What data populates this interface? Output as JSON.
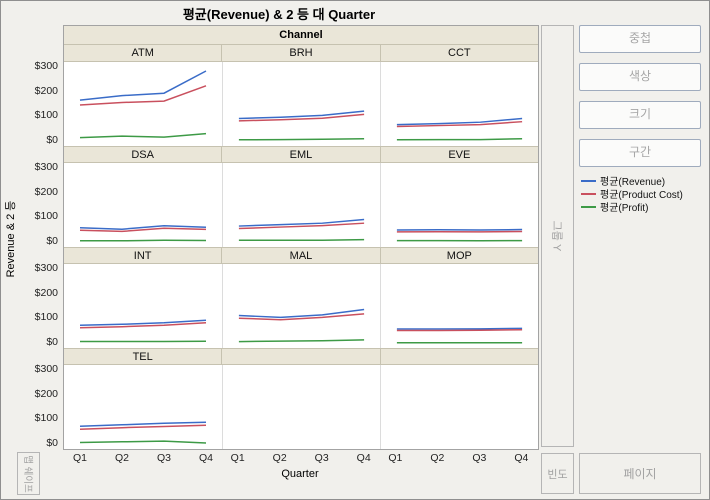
{
  "title": "평균(Revenue) & 2 등 대 Quarter",
  "panel": {
    "channel_header": "Channel",
    "group_y_dropzone": "그룹 Y",
    "map_shape_dropzone": "맵 쉐이프",
    "freq_dropzone": "빈도",
    "page_dropzone": "페이지"
  },
  "controls": {
    "buttons": [
      "중첩",
      "색상",
      "크기",
      "구간"
    ]
  },
  "chart_data": {
    "type": "line",
    "title": "평균(Revenue) & 2 등 대 Quarter",
    "facet_variable": "Channel",
    "xlabel": "Quarter",
    "ylabel": "Revenue & 2 등",
    "x": [
      "Q1",
      "Q2",
      "Q3",
      "Q4"
    ],
    "ylim": [
      0,
      300
    ],
    "yticks": [
      {
        "label": "$300",
        "value": 300
      },
      {
        "label": "$200",
        "value": 200
      },
      {
        "label": "$100",
        "value": 100
      },
      {
        "label": "$0",
        "value": 0
      }
    ],
    "series_names": [
      "평균(Revenue)",
      "평균(Product Cost)",
      "평균(Profit)"
    ],
    "series_colors": [
      "#3a6cc8",
      "#c9505e",
      "#3d9a46"
    ],
    "legend_position": "right",
    "grid": "off",
    "layout": [
      [
        "ATM",
        "BRH",
        "CCT"
      ],
      [
        "DSA",
        "EML",
        "EVE"
      ],
      [
        "INT",
        "MAL",
        "MOP"
      ],
      [
        "TEL",
        null,
        null
      ]
    ],
    "facets": [
      {
        "name": "ATM",
        "series": [
          [
            170,
            188,
            198,
            288
          ],
          [
            150,
            160,
            166,
            228
          ],
          [
            18,
            24,
            20,
            34
          ]
        ]
      },
      {
        "name": "BRH",
        "series": [
          [
            95,
            100,
            108,
            125
          ],
          [
            85,
            90,
            96,
            112
          ],
          [
            8,
            9,
            10,
            12
          ]
        ]
      },
      {
        "name": "CCT",
        "series": [
          [
            70,
            74,
            80,
            95
          ],
          [
            62,
            66,
            70,
            82
          ],
          [
            8,
            9,
            9,
            12
          ]
        ]
      },
      {
        "name": "DSA",
        "series": [
          [
            62,
            56,
            70,
            64
          ],
          [
            52,
            47,
            60,
            55
          ],
          [
            9,
            9,
            11,
            10
          ]
        ]
      },
      {
        "name": "EML",
        "series": [
          [
            68,
            74,
            80,
            95
          ],
          [
            58,
            64,
            70,
            80
          ],
          [
            10,
            10,
            10,
            13
          ]
        ]
      },
      {
        "name": "EVE",
        "series": [
          [
            52,
            53,
            52,
            54
          ],
          [
            44,
            45,
            44,
            46
          ],
          [
            9,
            9,
            8,
            9
          ]
        ]
      },
      {
        "name": "INT",
        "series": [
          [
            76,
            80,
            86,
            96
          ],
          [
            66,
            70,
            76,
            86
          ],
          [
            10,
            10,
            10,
            11
          ]
        ]
      },
      {
        "name": "MAL",
        "series": [
          [
            115,
            108,
            118,
            140
          ],
          [
            104,
            98,
            108,
            122
          ],
          [
            9,
            11,
            12,
            16
          ]
        ]
      },
      {
        "name": "MOP",
        "series": [
          [
            60,
            60,
            61,
            63
          ],
          [
            54,
            54,
            55,
            57
          ],
          [
            4,
            4,
            4,
            4
          ]
        ]
      },
      {
        "name": "TEL",
        "series": [
          [
            76,
            82,
            88,
            92
          ],
          [
            64,
            70,
            75,
            80
          ],
          [
            10,
            13,
            16,
            8
          ]
        ]
      }
    ]
  }
}
